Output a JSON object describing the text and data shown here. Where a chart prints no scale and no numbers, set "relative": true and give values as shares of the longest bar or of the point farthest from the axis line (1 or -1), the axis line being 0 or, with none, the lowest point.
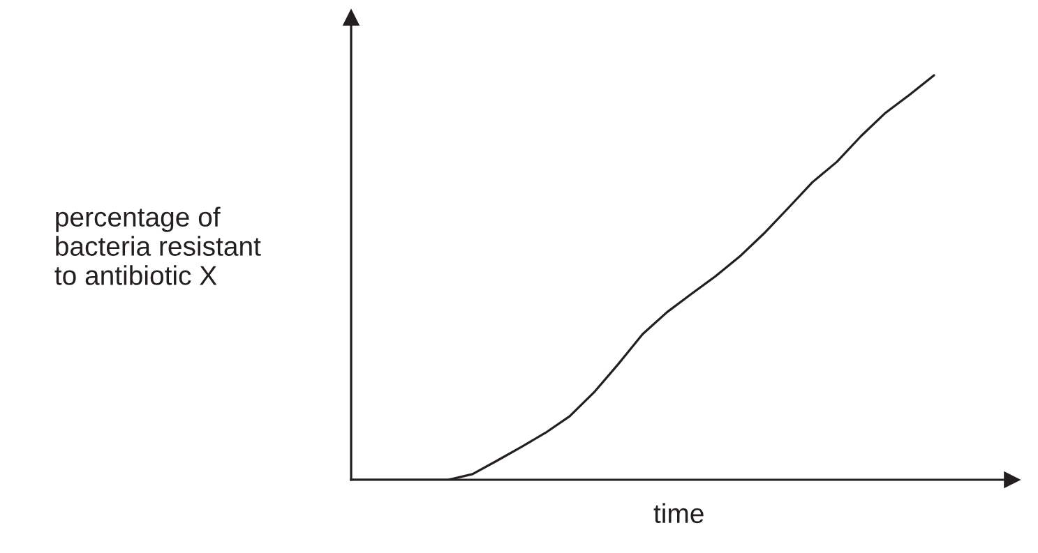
{
  "chart_data": {
    "type": "line",
    "relative": true,
    "xlabel": "time",
    "ylabel": "percentage of\nbacteria resistant\nto antibiotic X",
    "categories": [
      null,
      null,
      null,
      null,
      null,
      null,
      null,
      null,
      null,
      null,
      null,
      null,
      null,
      null,
      null,
      null,
      null,
      null,
      null,
      null,
      null,
      null,
      null,
      null,
      null
    ],
    "series": [
      {
        "color": "#231f20",
        "values": [
          0,
          0,
          0,
          0,
          0,
          0.014,
          0.047,
          0.081,
          0.116,
          0.157,
          0.216,
          0.286,
          0.36,
          0.414,
          0.459,
          0.503,
          0.552,
          0.609,
          0.672,
          0.736,
          0.786,
          0.85,
          0.907,
          0.952,
          1
        ]
      }
    ],
    "legend": false,
    "marker": "none",
    "line_style": "solid"
  }
}
